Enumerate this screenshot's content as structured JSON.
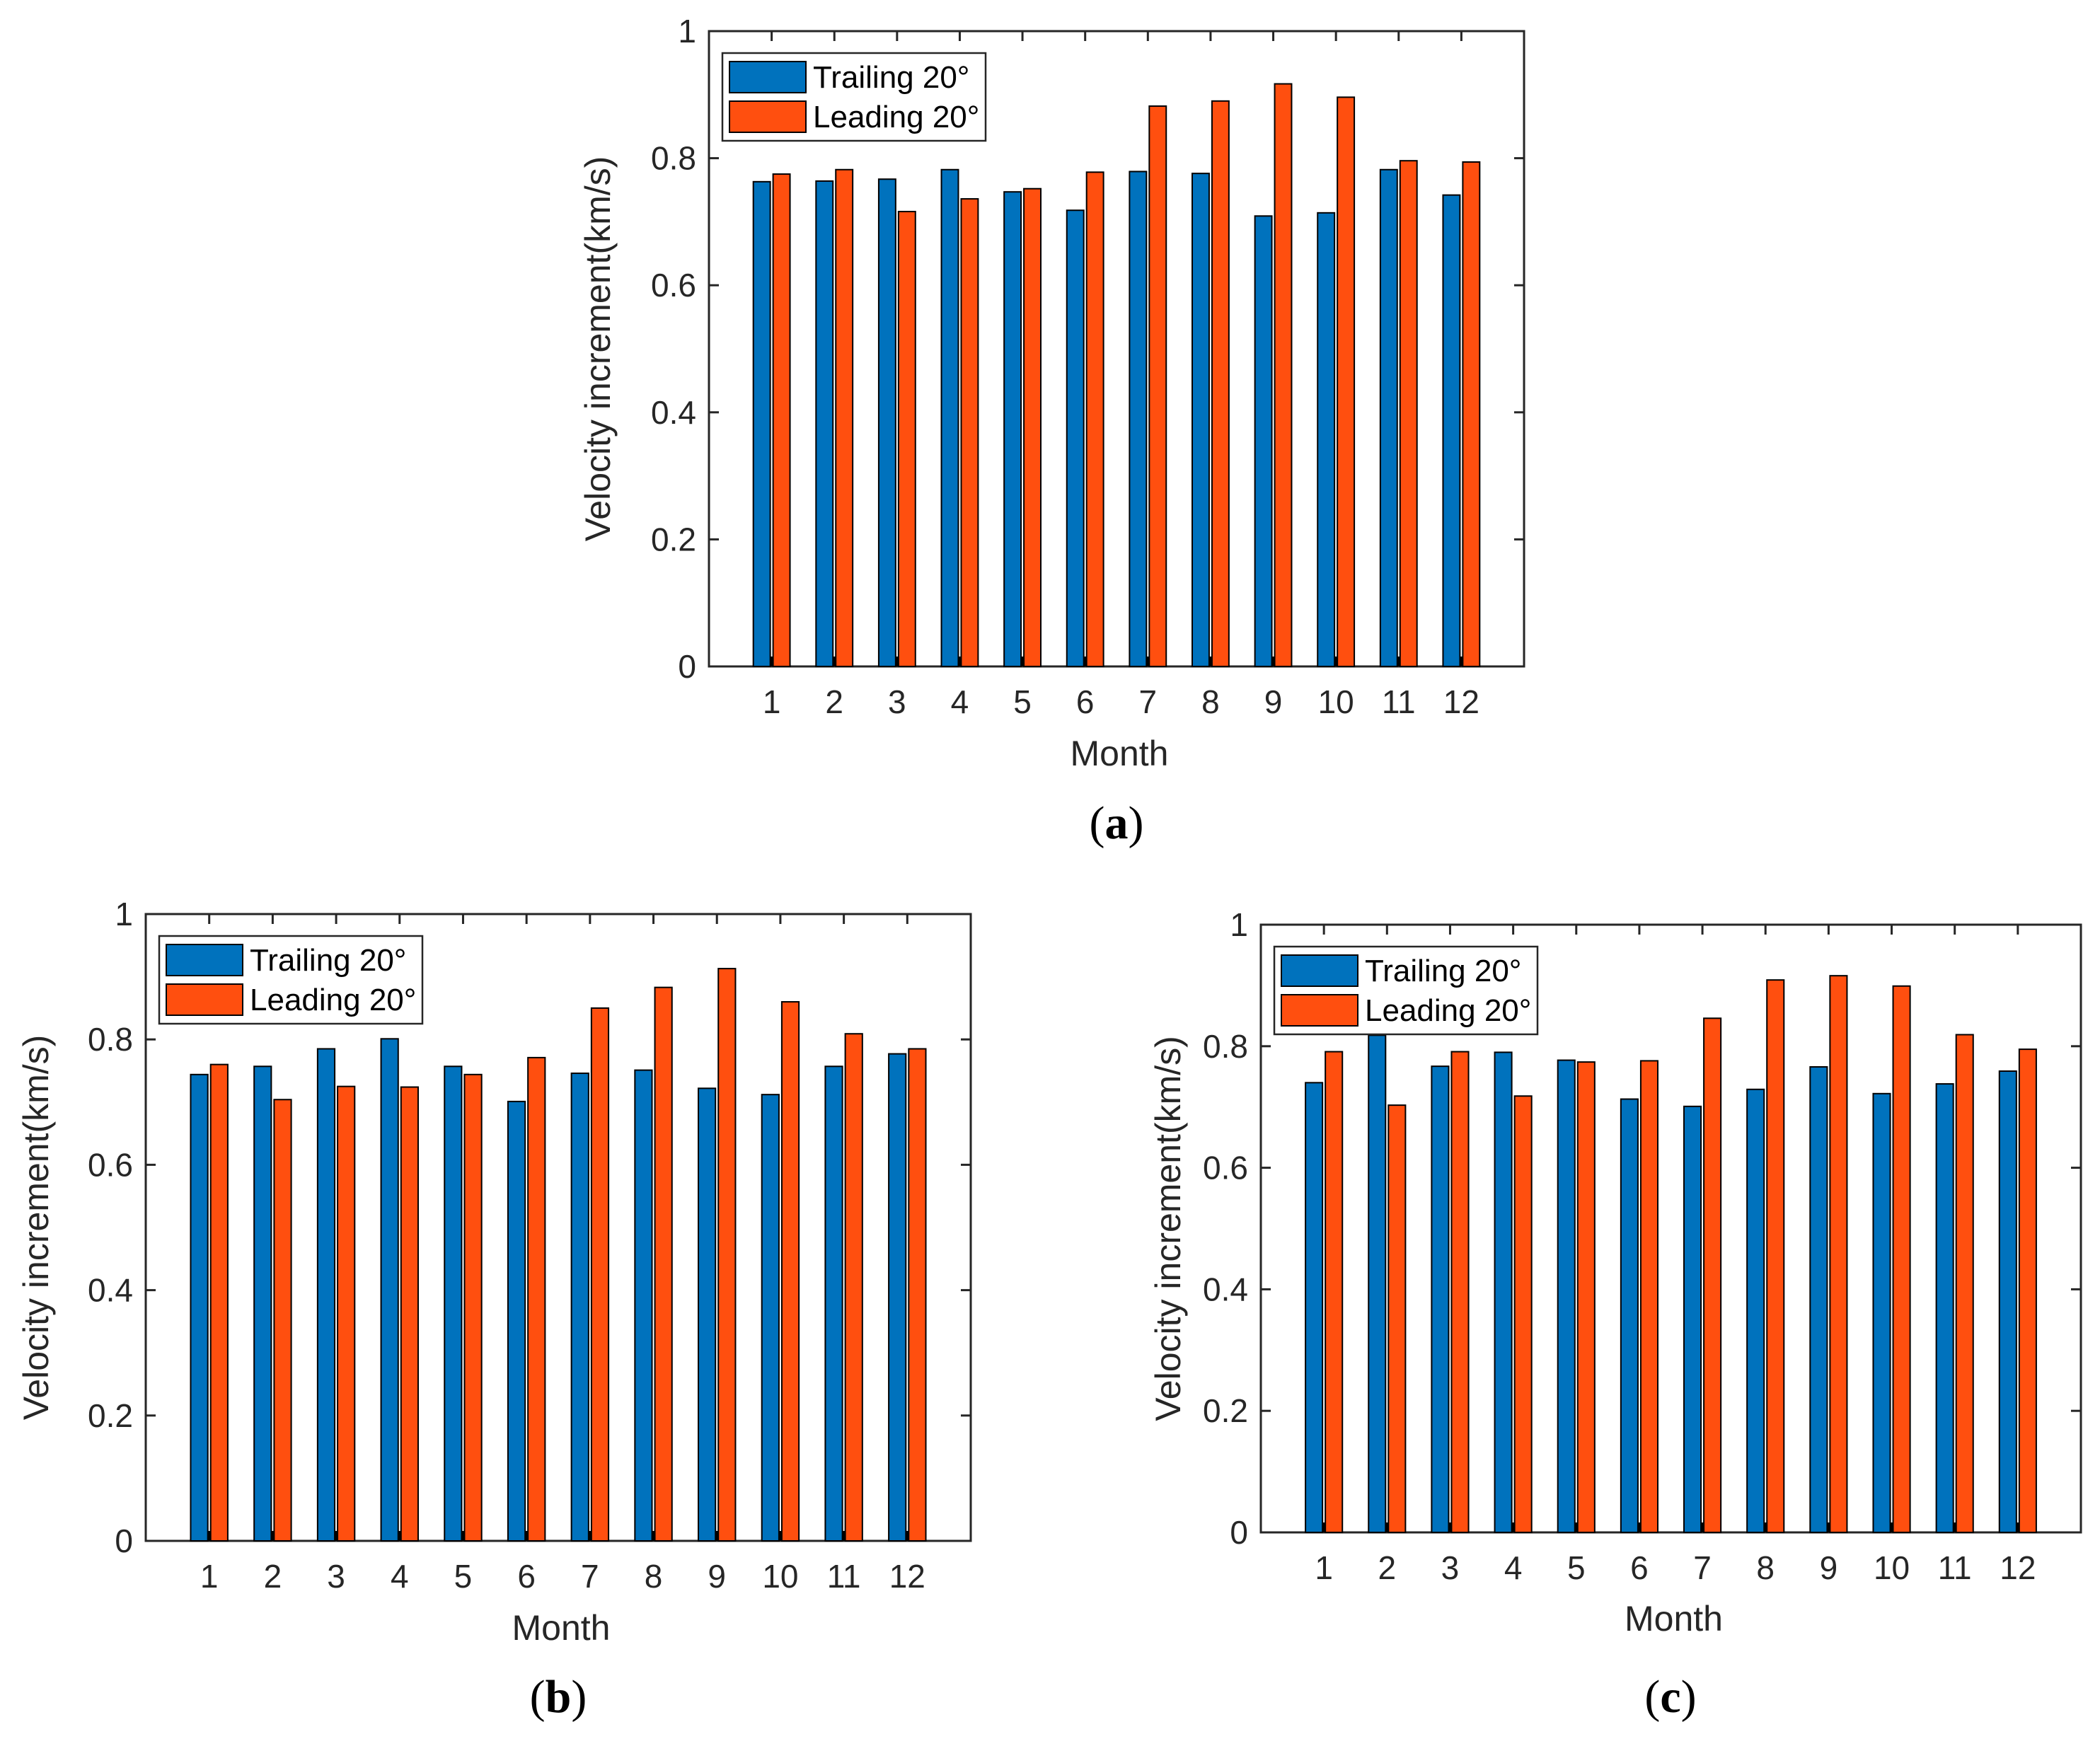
{
  "colors": {
    "trailing": "#0072BD",
    "leading": "#FF4F0F",
    "axis": "#262626"
  },
  "chart_data": [
    {
      "type": "bar",
      "panel": "a",
      "panel_label": "a",
      "categories": [
        "1",
        "2",
        "3",
        "4",
        "5",
        "6",
        "7",
        "8",
        "9",
        "10",
        "11",
        "12"
      ],
      "series": [
        {
          "name": "Trailing 20°",
          "values": [
            0.763,
            0.764,
            0.767,
            0.782,
            0.747,
            0.718,
            0.779,
            0.776,
            0.709,
            0.714,
            0.782,
            0.742
          ]
        },
        {
          "name": "Leading 20°",
          "values": [
            0.775,
            0.782,
            0.716,
            0.736,
            0.752,
            0.778,
            0.882,
            0.89,
            0.917,
            0.896,
            0.796,
            0.794
          ]
        }
      ],
      "xlabel": "Month",
      "ylabel": "Velocity increment(km/s)",
      "ylim": [
        0,
        1
      ],
      "yticks": [
        "0",
        "0.2",
        "0.4",
        "0.6",
        "0.8",
        "1"
      ],
      "legend_position": "top-left"
    },
    {
      "type": "bar",
      "panel": "b",
      "panel_label": "b",
      "categories": [
        "1",
        "2",
        "3",
        "4",
        "5",
        "6",
        "7",
        "8",
        "9",
        "10",
        "11",
        "12"
      ],
      "series": [
        {
          "name": "Trailing 20°",
          "values": [
            0.744,
            0.757,
            0.785,
            0.801,
            0.757,
            0.701,
            0.746,
            0.751,
            0.722,
            0.712,
            0.757,
            0.777
          ]
        },
        {
          "name": "Leading 20°",
          "values": [
            0.76,
            0.704,
            0.725,
            0.724,
            0.744,
            0.771,
            0.85,
            0.883,
            0.913,
            0.86,
            0.809,
            0.785
          ]
        }
      ],
      "xlabel": "Month",
      "ylabel": "Velocity increment(km/s)",
      "ylim": [
        0,
        1
      ],
      "yticks": [
        "0",
        "0.2",
        "0.4",
        "0.6",
        "0.8",
        "1"
      ],
      "legend_position": "top-left"
    },
    {
      "type": "bar",
      "panel": "c",
      "panel_label": "c",
      "categories": [
        "1",
        "2",
        "3",
        "4",
        "5",
        "6",
        "7",
        "8",
        "9",
        "10",
        "11",
        "12"
      ],
      "series": [
        {
          "name": "Trailing 20°",
          "values": [
            0.74,
            0.818,
            0.767,
            0.79,
            0.777,
            0.713,
            0.701,
            0.729,
            0.766,
            0.722,
            0.738,
            0.759
          ]
        },
        {
          "name": "Leading 20°",
          "values": [
            0.791,
            0.703,
            0.791,
            0.718,
            0.774,
            0.776,
            0.846,
            0.909,
            0.916,
            0.899,
            0.819,
            0.795
          ]
        }
      ],
      "xlabel": "Month",
      "ylabel": "Velocity increment(km/s)",
      "ylim": [
        0,
        1
      ],
      "yticks": [
        "0",
        "0.2",
        "0.4",
        "0.6",
        "0.8",
        "1"
      ],
      "legend_position": "top-left"
    }
  ]
}
